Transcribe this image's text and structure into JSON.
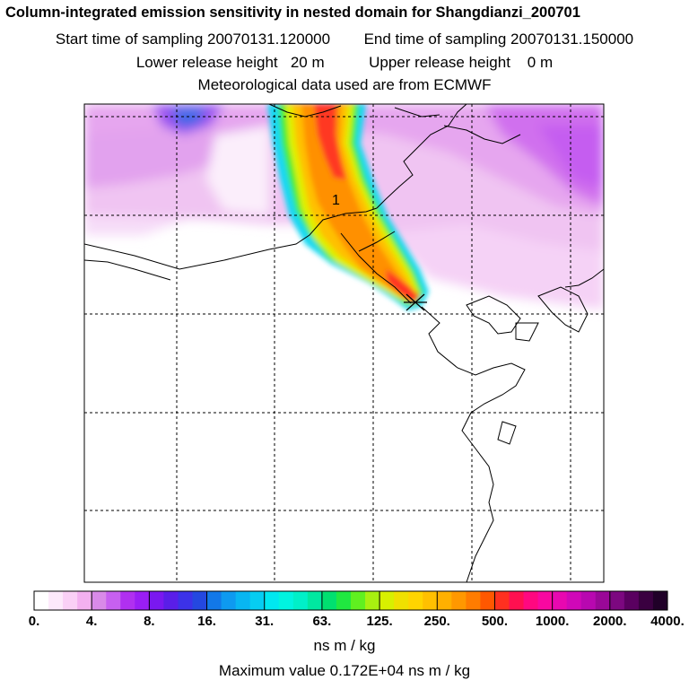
{
  "header": {
    "title": "Column-integrated emission sensitivity in nested domain for Shangdianzi_200701",
    "start_label": "Start time of sampling 20070131.120000",
    "end_label": "End time of sampling 20070131.150000",
    "lower_label": "Lower release height   20 m",
    "upper_label": "Upper release height    0 m",
    "met_label": "Meteorological data used are from ECMWF"
  },
  "map": {
    "annotation": "1",
    "receptor_marker": "x-marker"
  },
  "colorbar": {
    "tick_labels": [
      "0.",
      "4.",
      "8.",
      "16.",
      "31.",
      "63.",
      "125.",
      "250.",
      "500.",
      "1000.",
      "2000.",
      "4000."
    ],
    "colors": [
      "#ffffff",
      "#fde9fb",
      "#fad0f6",
      "#f3b0f0",
      "#d98ae8",
      "#c760f0",
      "#b030f0",
      "#9a1ef5",
      "#7a18f0",
      "#5a1ee8",
      "#3c32e8",
      "#2448e0",
      "#1278e8",
      "#0e9af0",
      "#08b6f2",
      "#06cdf2",
      "#00e8f0",
      "#00f4e0",
      "#00f0c8",
      "#00e8a0",
      "#00e070",
      "#20e840",
      "#60f020",
      "#a8f010",
      "#d8f000",
      "#f0e000",
      "#ffd400",
      "#ffc000",
      "#ffb000",
      "#ff9800",
      "#ff7c00",
      "#ff5800",
      "#ff3020",
      "#ff1050",
      "#ff0880",
      "#f808a0",
      "#e808b0",
      "#d008b8",
      "#b808b0",
      "#9a0898",
      "#7c0880",
      "#5a0060",
      "#3a0040",
      "#200028"
    ],
    "units": "ns m / kg",
    "max_value_text": "Maximum value  0.172E+04 ns m / kg"
  }
}
